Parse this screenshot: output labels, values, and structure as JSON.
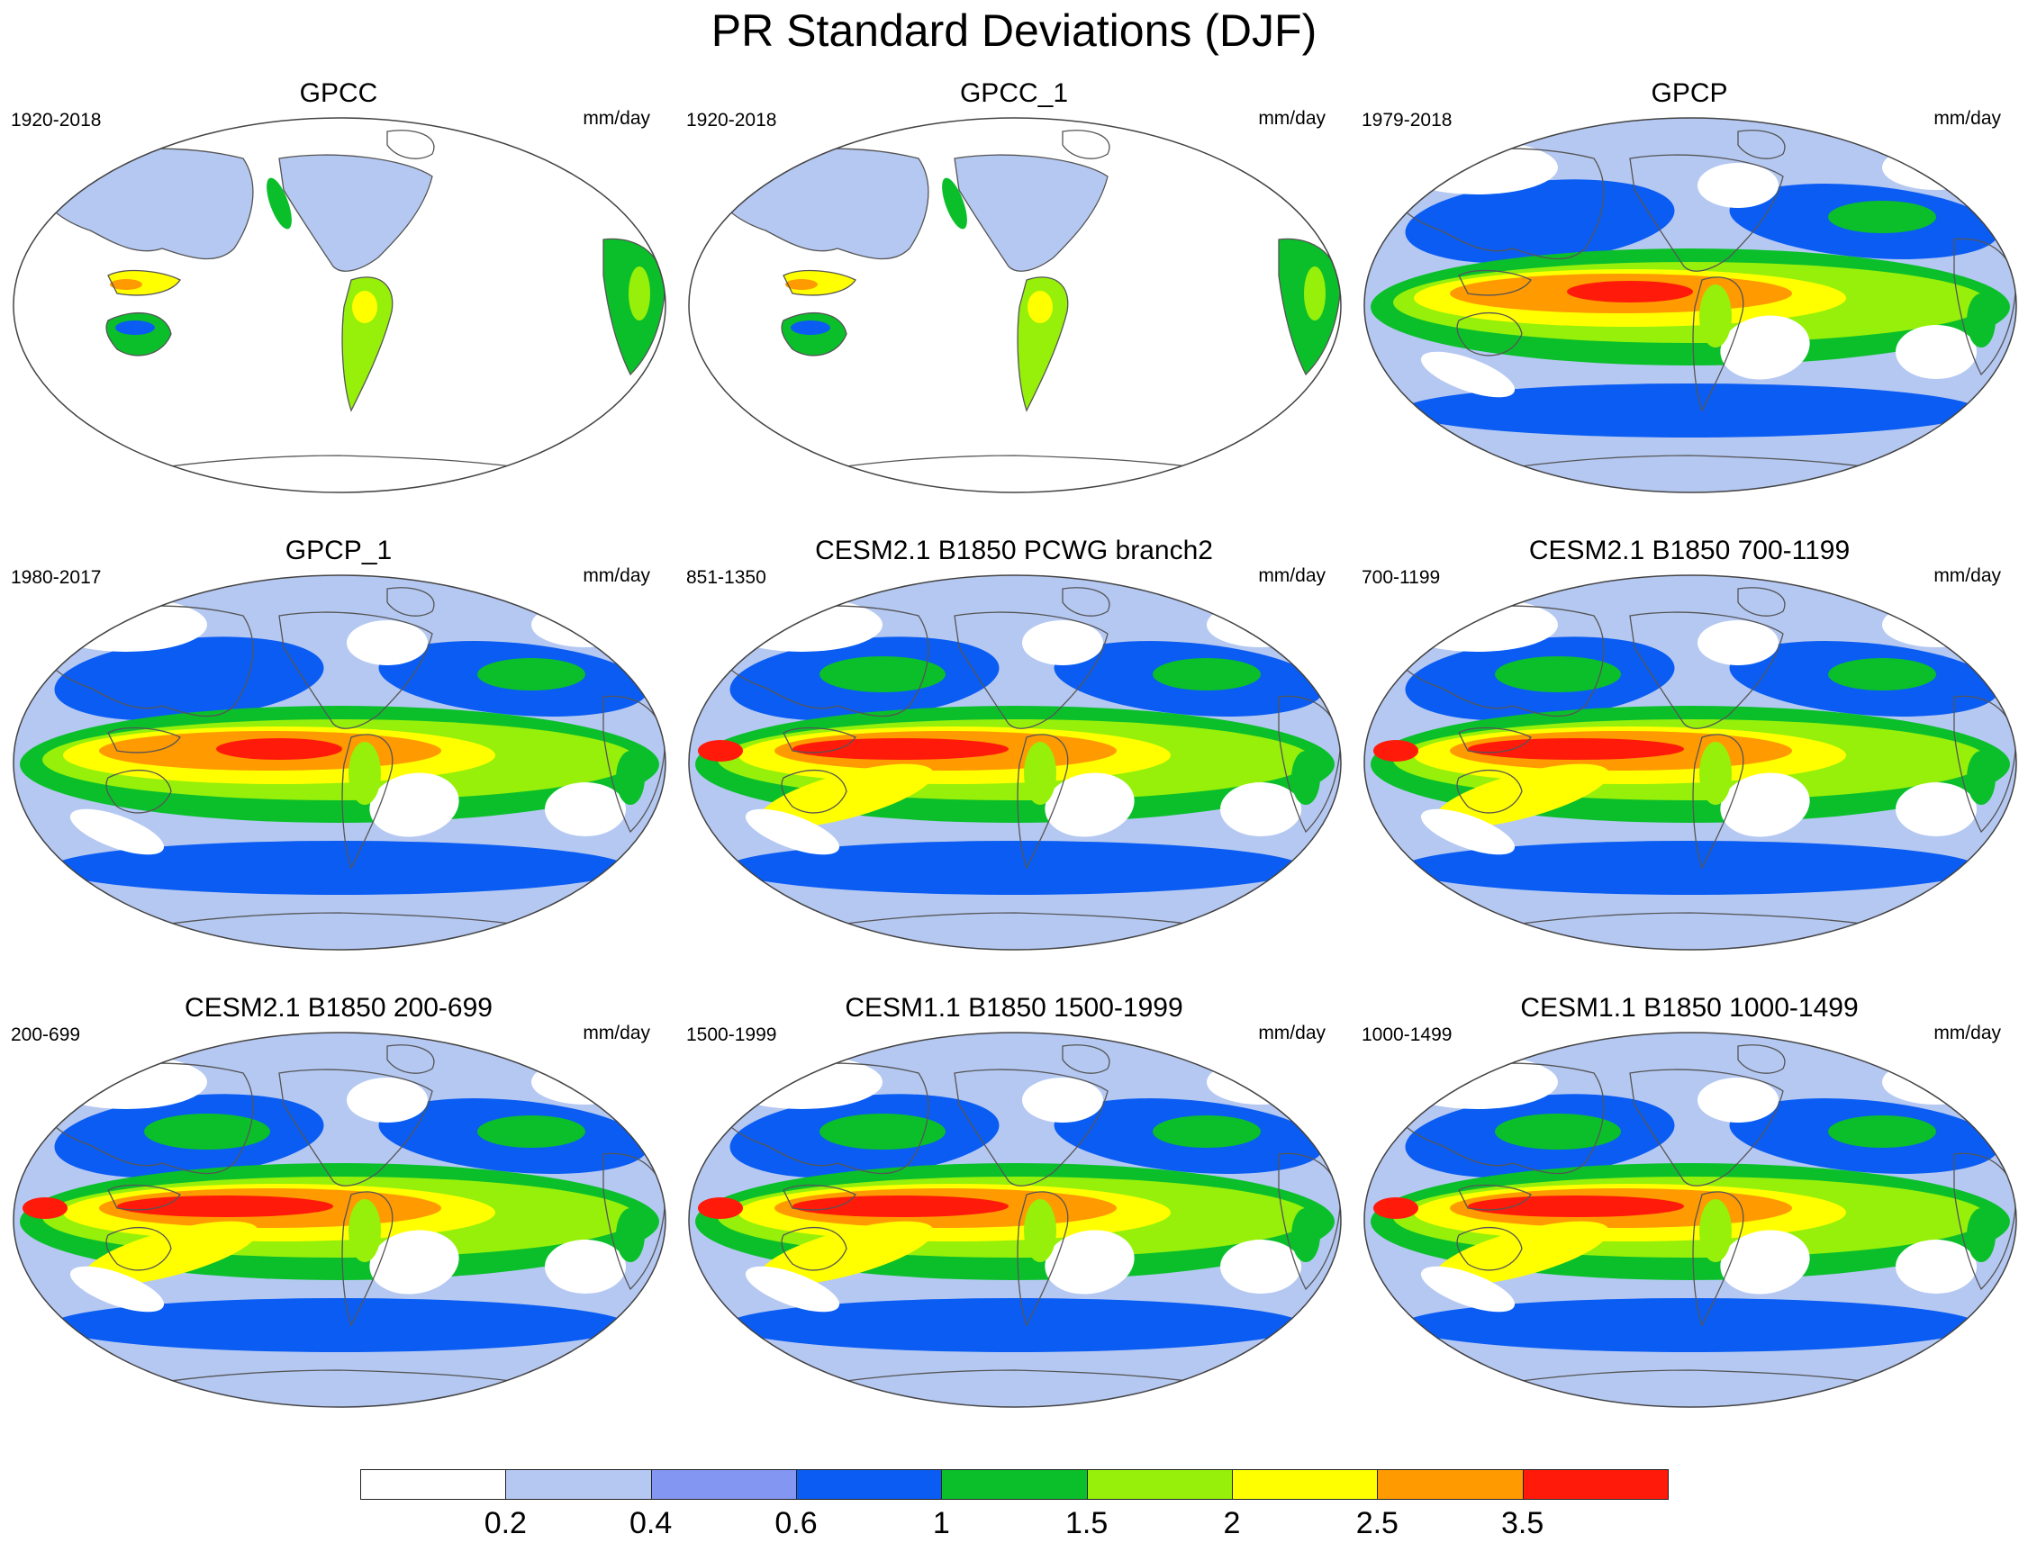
{
  "title": "PR Standard Deviations (DJF)",
  "panels": [
    {
      "title": "GPCC",
      "years": "1920-2018",
      "units": "mm/day",
      "kind": "land"
    },
    {
      "title": "GPCC_1",
      "years": "1920-2018",
      "units": "mm/day",
      "kind": "land"
    },
    {
      "title": "GPCP",
      "years": "1979-2018",
      "units": "mm/day",
      "kind": "obs"
    },
    {
      "title": "GPCP_1",
      "years": "1980-2017",
      "units": "mm/day",
      "kind": "obs"
    },
    {
      "title": "CESM2.1 B1850 PCWG branch2",
      "years": "851-1350",
      "units": "mm/day",
      "kind": "model"
    },
    {
      "title": "CESM2.1 B1850 700-1199",
      "years": "700-1199",
      "units": "mm/day",
      "kind": "model"
    },
    {
      "title": "CESM2.1 B1850 200-699",
      "years": "200-699",
      "units": "mm/day",
      "kind": "model"
    },
    {
      "title": "CESM1.1 B1850 1500-1999",
      "years": "1500-1999",
      "units": "mm/day",
      "kind": "model"
    },
    {
      "title": "CESM1.1 B1850 1000-1499",
      "years": "1000-1499",
      "units": "mm/day",
      "kind": "model"
    }
  ],
  "colorbar": {
    "colors": [
      "#ffffff",
      "#b5c8f2",
      "#8296f2",
      "#0a5cf2",
      "#0bbf2b",
      "#96f00a",
      "#ffff00",
      "#ff9a00",
      "#ff1a0a"
    ],
    "labels": [
      "0.2",
      "0.4",
      "0.6",
      "1",
      "1.5",
      "2",
      "2.5",
      "3.5"
    ]
  }
}
